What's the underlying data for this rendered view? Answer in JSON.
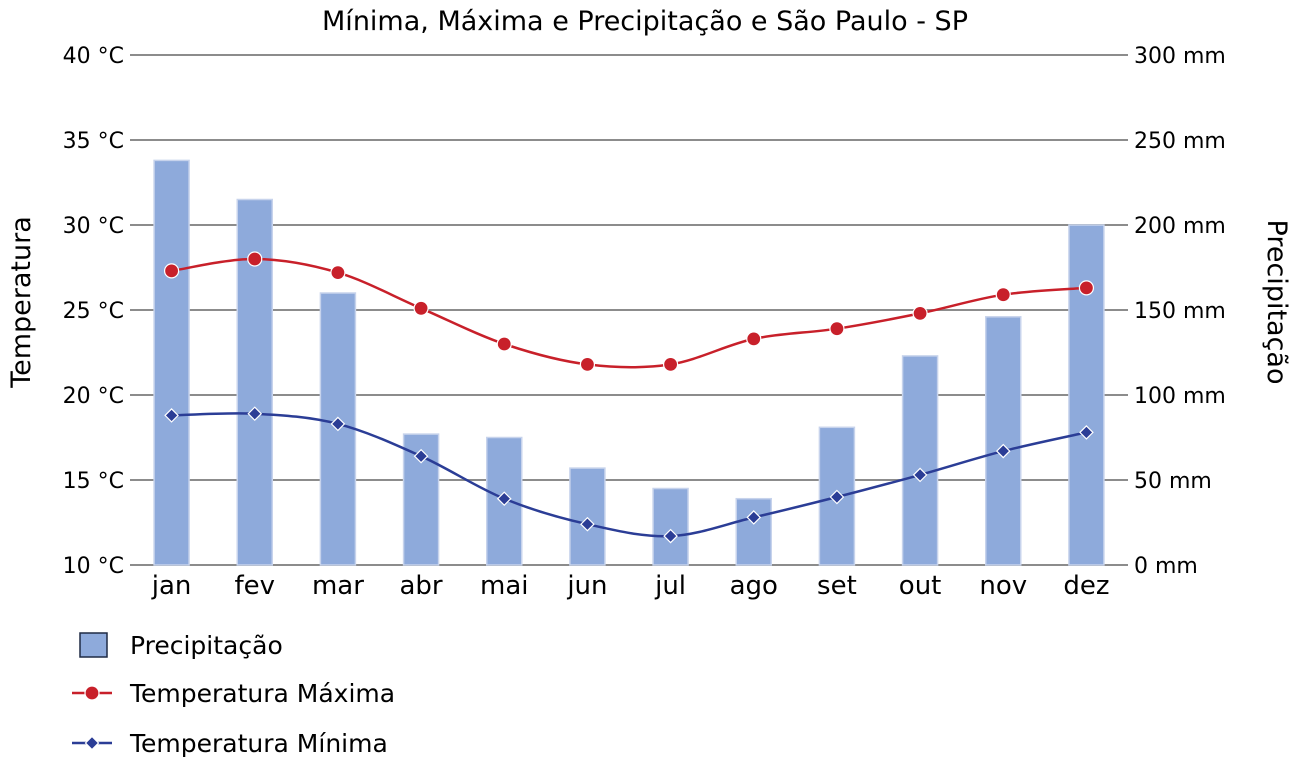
{
  "chart_data": {
    "type": "bar",
    "title": "Mínima, Máxima e Precipitação e São Paulo - SP",
    "categories": [
      "jan",
      "fev",
      "mar",
      "abr",
      "mai",
      "jun",
      "jul",
      "ago",
      "set",
      "out",
      "nov",
      "dez"
    ],
    "y_left": {
      "label": "Temperatura",
      "range": [
        10,
        40
      ],
      "ticks": [
        "10 °C",
        "15 °C",
        "20 °C",
        "25 °C",
        "30 °C",
        "35 °C",
        "40 °C"
      ]
    },
    "y_right": {
      "label": "Precipitação",
      "range": [
        0,
        300
      ],
      "ticks": [
        "0 mm",
        "50 mm",
        "100 mm",
        "150 mm",
        "200 mm",
        "250 mm",
        "300 mm"
      ]
    },
    "grid": true,
    "legend_position": "bottom-left",
    "series": [
      {
        "name": "Precipitação",
        "kind": "bar",
        "axis": "right",
        "color": "#8eaadb",
        "values": [
          238,
          215,
          160,
          77,
          75,
          57,
          45,
          39,
          81,
          123,
          146,
          200
        ]
      },
      {
        "name": "Temperatura Máxima",
        "kind": "line",
        "axis": "left",
        "marker": "circle",
        "color": "#c8202a",
        "values": [
          27.3,
          28.0,
          27.2,
          25.1,
          23.0,
          21.8,
          21.8,
          23.3,
          23.9,
          24.8,
          25.9,
          26.3
        ]
      },
      {
        "name": "Temperatura Mínima",
        "kind": "line",
        "axis": "left",
        "marker": "diamond",
        "color": "#2b3d96",
        "values": [
          18.8,
          18.9,
          18.3,
          16.4,
          13.9,
          12.4,
          11.7,
          12.8,
          14.0,
          15.3,
          16.7,
          17.8
        ]
      }
    ]
  }
}
